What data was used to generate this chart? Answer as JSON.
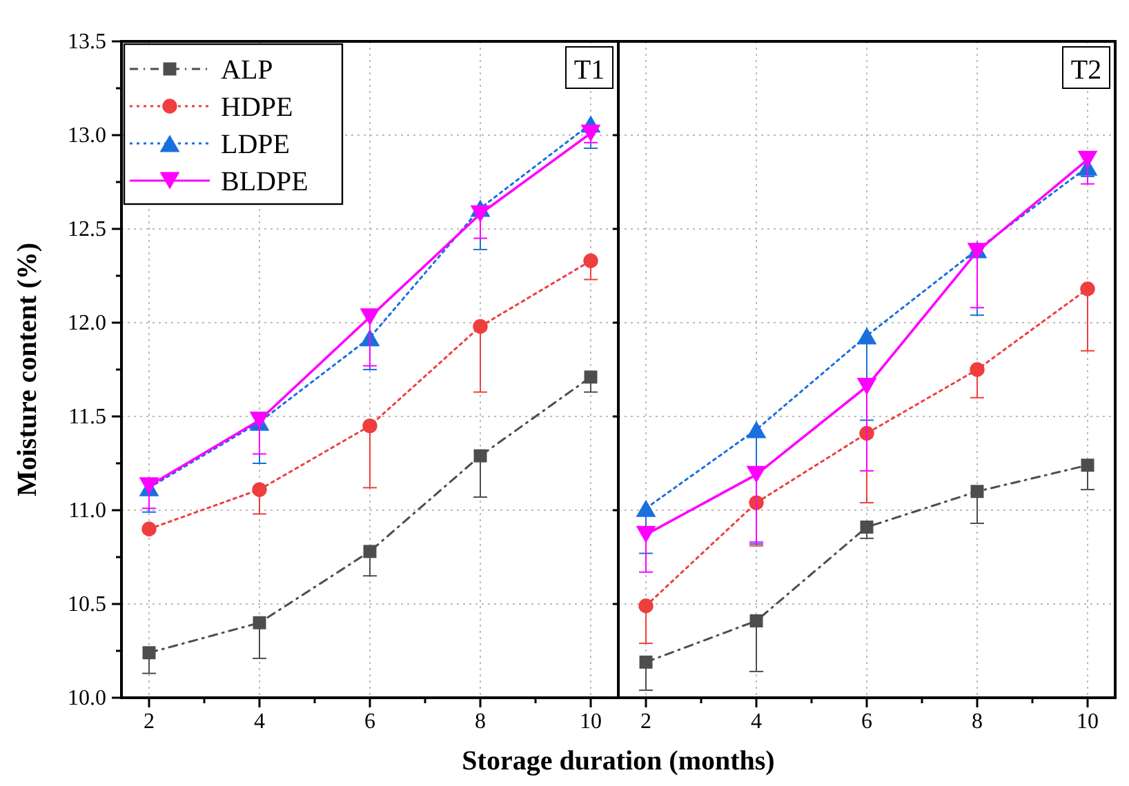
{
  "chart_data": [
    {
      "type": "line",
      "title": "T1",
      "xlabel": "Storage duration (months)",
      "ylabel": "Moisture content (%)",
      "x": [
        2,
        4,
        6,
        8,
        10
      ],
      "xlim": [
        1.5,
        10.5
      ],
      "xticks": [
        2,
        {
          "value": 3,
          "label": null
        },
        4,
        {
          "value": 5,
          "label": null
        },
        6,
        {
          "value": 7,
          "label": null
        },
        8,
        {
          "value": 9,
          "label": null
        },
        10
      ],
      "ylim": [
        10,
        13.5
      ],
      "yticks": [
        {
          "value": 10,
          "label": "10.0"
        },
        {
          "value": 10.25,
          "label": null
        },
        10.5,
        {
          "value": 10.75,
          "label": null
        },
        {
          "value": 11,
          "label": "11.0"
        },
        {
          "value": 11.25,
          "label": null
        },
        11.5,
        {
          "value": 11.75,
          "label": null
        },
        {
          "value": 12,
          "label": "12.0"
        },
        {
          "value": 12.25,
          "label": null
        },
        12.5,
        {
          "value": 12.75,
          "label": null
        },
        {
          "value": 13,
          "label": "13.0"
        },
        {
          "value": 13.25,
          "label": null
        },
        13.5
      ],
      "grid": true,
      "legend": "top left",
      "series": [
        {
          "name": "ALP",
          "color": "#4d4d4d",
          "marker": "square",
          "line_style": "dashed",
          "values": [
            10.24,
            10.4,
            10.78,
            11.29,
            11.71
          ],
          "errors": [
            [
              10.13,
              10.24
            ],
            [
              10.21,
              10.4
            ],
            [
              10.65,
              10.78
            ],
            [
              11.07,
              11.29
            ],
            [
              11.63,
              11.71
            ]
          ]
        },
        {
          "name": "HDPE",
          "color": "#ef3e3e",
          "marker": "circle",
          "line_style": "dotted",
          "values": [
            10.9,
            11.11,
            11.45,
            11.98,
            12.33
          ],
          "errors": [
            null,
            [
              10.98,
              11.11
            ],
            [
              11.12,
              11.45
            ],
            [
              11.63,
              11.98
            ],
            [
              12.23,
              12.33
            ]
          ]
        },
        {
          "name": "LDPE",
          "color": "#1a6fdf",
          "marker": "triangle",
          "line_style": "dotted",
          "values": [
            11.12,
            11.47,
            11.92,
            12.61,
            13.06
          ],
          "errors": [
            [
              10.99,
              11.12
            ],
            [
              11.25,
              11.47
            ],
            [
              11.75,
              11.92
            ],
            [
              12.39,
              12.61
            ],
            [
              12.93,
              13.06
            ]
          ]
        },
        {
          "name": "BLDPE",
          "color": "#ff00ff",
          "marker": "triangle-down",
          "line_style": "solid",
          "values": [
            11.13,
            11.48,
            12.03,
            12.58,
            13.01
          ],
          "errors": [
            [
              11.01,
              11.13
            ],
            [
              11.3,
              11.48
            ],
            [
              11.77,
              12.03
            ],
            [
              12.45,
              12.58
            ],
            [
              12.96,
              13.01
            ]
          ]
        }
      ]
    },
    {
      "type": "line",
      "title": "T2",
      "x": [
        2,
        4,
        6,
        8,
        10
      ],
      "xlim": [
        1.5,
        10.5
      ],
      "xticks": [
        2,
        {
          "value": 3,
          "label": null
        },
        4,
        {
          "value": 5,
          "label": null
        },
        6,
        {
          "value": 7,
          "label": null
        },
        8,
        {
          "value": 9,
          "label": null
        },
        10
      ],
      "ylim": [
        10,
        13.5
      ],
      "yticks": [
        {
          "value": 10,
          "label": null
        },
        {
          "value": 10.5,
          "label": null
        },
        {
          "value": 11,
          "label": null
        },
        {
          "value": 11.5,
          "label": null
        },
        {
          "value": 12,
          "label": null
        },
        {
          "value": 12.5,
          "label": null
        },
        {
          "value": 13,
          "label": null
        },
        {
          "value": 13.5,
          "label": null
        }
      ],
      "grid": true,
      "tick_labels": "x",
      "series": [
        {
          "color": "#4d4d4d",
          "marker": "square",
          "line_style": "dashed",
          "values": [
            10.19,
            10.41,
            10.91,
            11.1,
            11.24
          ],
          "errors": [
            [
              10.04,
              10.19
            ],
            [
              10.14,
              10.41
            ],
            [
              10.85,
              10.91
            ],
            [
              10.93,
              11.1
            ],
            [
              11.11,
              11.24
            ]
          ]
        },
        {
          "color": "#ef3e3e",
          "marker": "circle",
          "line_style": "dotted",
          "values": [
            10.49,
            11.04,
            11.41,
            11.75,
            12.18
          ],
          "errors": [
            [
              10.29,
              10.49
            ],
            [
              10.81,
              11.04
            ],
            [
              11.04,
              11.41
            ],
            [
              11.6,
              11.75
            ],
            [
              11.85,
              12.18
            ]
          ]
        },
        {
          "color": "#1a6fdf",
          "marker": "triangle",
          "line_style": "dotted",
          "values": [
            11.01,
            11.43,
            11.93,
            12.39,
            12.83
          ],
          "errors": [
            [
              10.77,
              11.01
            ],
            [
              10.82,
              11.43
            ],
            [
              11.48,
              11.93
            ],
            [
              12.04,
              12.39
            ],
            [
              12.78,
              12.83
            ]
          ]
        },
        {
          "color": "#ff00ff",
          "marker": "triangle-down",
          "line_style": "solid",
          "values": [
            10.87,
            11.19,
            11.66,
            12.38,
            12.87
          ],
          "errors": [
            [
              10.67,
              10.87
            ],
            [
              10.83,
              11.19
            ],
            [
              11.21,
              11.66
            ],
            [
              12.08,
              12.38
            ],
            [
              12.74,
              12.87
            ]
          ]
        }
      ]
    }
  ]
}
